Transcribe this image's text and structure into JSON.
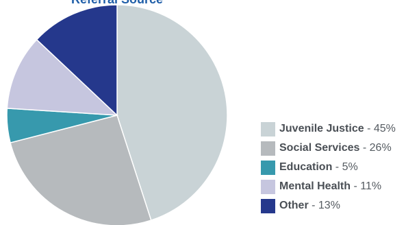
{
  "chart_data": {
    "type": "pie",
    "title": "Referral Source",
    "slices": [
      {
        "label": "Juvenile Justice",
        "value": 45,
        "display": "45%",
        "color": "#c9d3d6"
      },
      {
        "label": "Social Services",
        "value": 26,
        "display": "26%",
        "color": "#b6babd"
      },
      {
        "label": "Education",
        "value": 5,
        "display": "5%",
        "color": "#3799ad"
      },
      {
        "label": "Mental Health",
        "value": 11,
        "display": "11%",
        "color": "#c6c6df"
      },
      {
        "label": "Other",
        "value": 13,
        "display": "13%",
        "color": "#25388c"
      }
    ],
    "start_angle_deg": 0,
    "direction": "clockwise",
    "legend_placement": "bottom-right"
  }
}
